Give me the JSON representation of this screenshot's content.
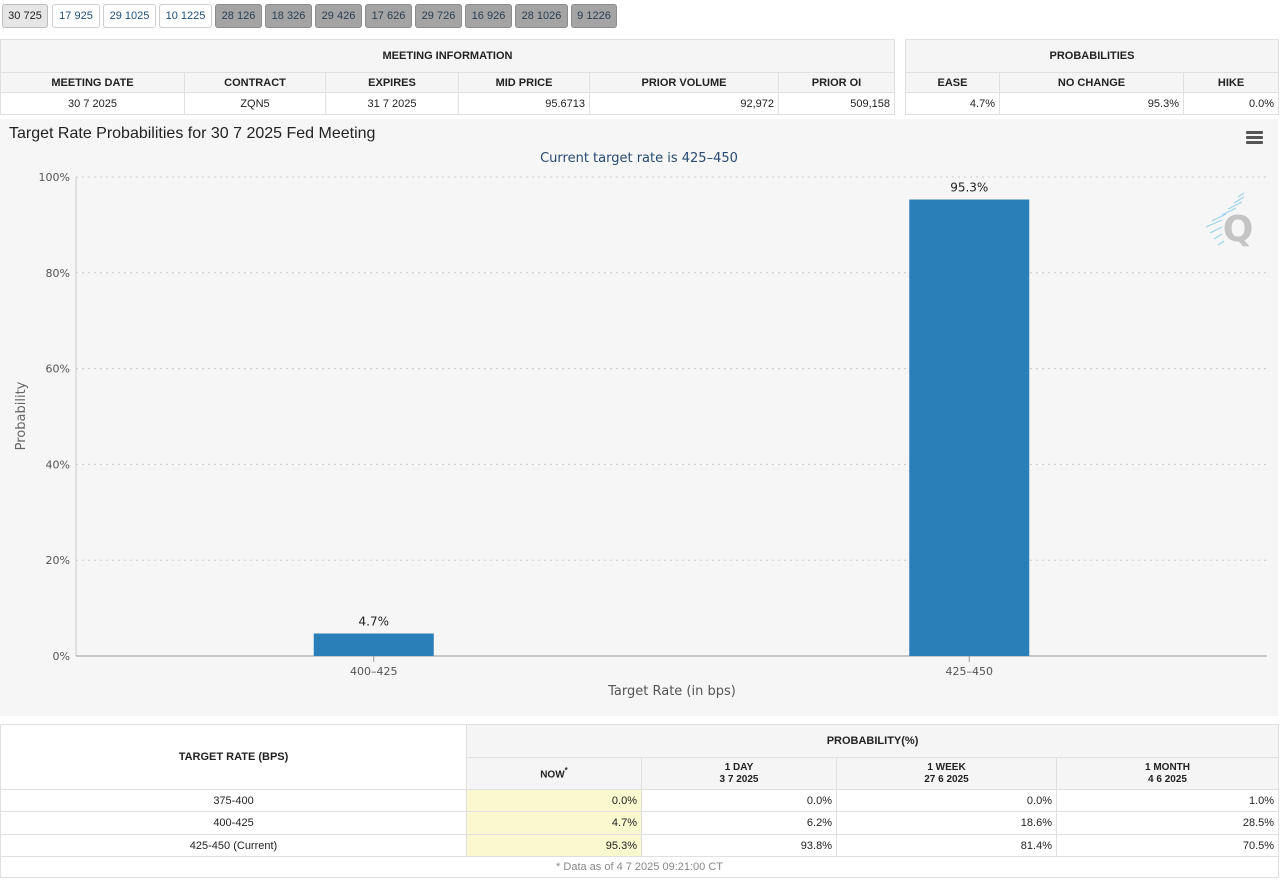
{
  "tabs": [
    {
      "label": "30 725",
      "style": "active"
    },
    {
      "label": "17 925",
      "style": "plain"
    },
    {
      "label": "29 1025",
      "style": "plain"
    },
    {
      "label": "10 1225",
      "style": "plain"
    },
    {
      "label": "28 126",
      "style": "grey"
    },
    {
      "label": "18 326",
      "style": "grey"
    },
    {
      "label": "29 426",
      "style": "grey"
    },
    {
      "label": "17 626",
      "style": "grey"
    },
    {
      "label": "29 726",
      "style": "grey"
    },
    {
      "label": "16 926",
      "style": "grey"
    },
    {
      "label": "28 1026",
      "style": "grey"
    },
    {
      "label": "9 1226",
      "style": "grey"
    }
  ],
  "meeting_info": {
    "header": "MEETING INFORMATION",
    "columns": [
      "MEETING DATE",
      "CONTRACT",
      "EXPIRES",
      "MID PRICE",
      "PRIOR VOLUME",
      "PRIOR OI"
    ],
    "row": [
      "30 7 2025",
      "ZQN5",
      "31 7 2025",
      "95.6713",
      "92,972",
      "509,158"
    ]
  },
  "probabilities": {
    "header": "PROBABILITIES",
    "columns": [
      "EASE",
      "NO CHANGE",
      "HIKE"
    ],
    "row": [
      "4.7%",
      "95.3%",
      "0.0%"
    ]
  },
  "chart": {
    "title": "Target Rate Probabilities for 30 7 2025 Fed Meeting",
    "subtitle": "Current target rate is 425–450",
    "menu_icon": "hamburger-menu-icon",
    "logo_icon": "q-logo-icon"
  },
  "chart_data": {
    "type": "bar",
    "title": "Target Rate Probabilities for 30 7 2025 Fed Meeting",
    "subtitle": "Current target rate is 425–450",
    "categories": [
      "400–425",
      "425–450"
    ],
    "values": [
      4.7,
      95.3
    ],
    "data_labels": [
      "4.7%",
      "95.3%"
    ],
    "xlabel": "Target Rate (in bps)",
    "ylabel": "Probability",
    "ylim": [
      0,
      100
    ],
    "yticks": [
      0,
      20,
      40,
      60,
      80,
      100
    ],
    "ytick_labels": [
      "0%",
      "20%",
      "40%",
      "60%",
      "80%",
      "100%"
    ],
    "grid": true,
    "bar_color": "#2b7fb8"
  },
  "rate_table": {
    "header_target": "TARGET RATE (BPS)",
    "header_prob": "PROBABILITY(%)",
    "now_label": "NOW",
    "now_mark": "*",
    "cols": [
      {
        "line1": "1 DAY",
        "line2": "3 7 2025"
      },
      {
        "line1": "1 WEEK",
        "line2": "27 6 2025"
      },
      {
        "line1": "1 MONTH",
        "line2": "4 6 2025"
      }
    ],
    "rows": [
      {
        "rate": "375-400",
        "now": "0.0%",
        "day": "0.0%",
        "week": "0.0%",
        "month": "1.0%"
      },
      {
        "rate": "400-425",
        "now": "4.7%",
        "day": "6.2%",
        "week": "18.6%",
        "month": "28.5%"
      },
      {
        "rate": "425-450 (Current)",
        "now": "95.3%",
        "day": "93.8%",
        "week": "81.4%",
        "month": "70.5%"
      }
    ],
    "footnote": "* Data as of 4 7 2025 09:21:00 CT"
  },
  "colors": {
    "now_highlight": "#f9f8cf",
    "grey_tab": "#a4a4a4",
    "chart_bg": "#f6f6f6"
  }
}
